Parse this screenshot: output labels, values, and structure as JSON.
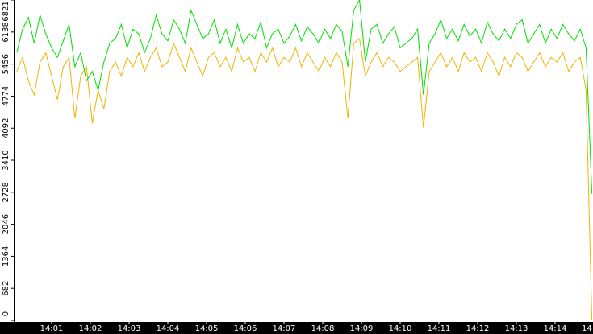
{
  "chart_data": {
    "type": "line",
    "x": [
      0.1,
      0.25,
      0.4,
      0.55,
      0.7,
      0.85,
      1,
      1.15,
      1.3,
      1.45,
      1.6,
      1.75,
      1.9,
      2.05,
      2.2,
      2.35,
      2.5,
      2.65,
      2.8,
      2.95,
      3.1,
      3.25,
      3.4,
      3.55,
      3.7,
      3.85,
      4,
      4.15,
      4.3,
      4.45,
      4.6,
      4.75,
      4.9,
      5.05,
      5.2,
      5.35,
      5.5,
      5.65,
      5.8,
      5.95,
      6.1,
      6.25,
      6.4,
      6.55,
      6.7,
      6.85,
      7,
      7.15,
      7.3,
      7.45,
      7.6,
      7.75,
      7.9,
      8.05,
      8.2,
      8.35,
      8.5,
      8.65,
      8.8,
      8.95,
      9.1,
      9.25,
      9.4,
      9.55,
      9.7,
      9.85,
      10,
      10.15,
      10.3,
      10.45,
      10.6,
      10.75,
      10.9,
      11.05,
      11.2,
      11.35,
      11.5,
      11.65,
      11.8,
      11.95,
      12.1,
      12.25,
      12.4,
      12.55,
      12.7,
      12.85,
      13,
      13.15,
      13.3,
      13.45,
      13.6,
      13.75,
      13.9,
      14.05,
      14.2,
      14.35,
      14.5,
      14.65,
      14.8,
      14.95
    ],
    "series": [
      {
        "color": "#f0b400",
        "values": [
          5300,
          5600,
          5100,
          4800,
          5500,
          5700,
          5200,
          4700,
          5400,
          5600,
          4300,
          5200,
          5400,
          4200,
          4900,
          4500,
          5300,
          5500,
          5200,
          5600,
          5400,
          5700,
          5300,
          5600,
          5800,
          5400,
          5500,
          5900,
          5600,
          5300,
          5800,
          5500,
          5200,
          5600,
          5700,
          5400,
          5600,
          5300,
          5800,
          5500,
          5600,
          5300,
          5700,
          5500,
          5800,
          5400,
          5600,
          5500,
          5800,
          5400,
          5700,
          5500,
          5300,
          5600,
          5400,
          5700,
          5500,
          4300,
          5900,
          6000,
          5200,
          5500,
          5700,
          5400,
          5600,
          5500,
          5300,
          5400,
          5500,
          5600,
          4100,
          5300,
          5500,
          5700,
          5400,
          5600,
          5300,
          5700,
          5500,
          5600,
          5300,
          5700,
          5500,
          5200,
          5600,
          5400,
          5700,
          5600,
          5300,
          5500,
          5700,
          5400,
          5600,
          5500,
          5700,
          5300,
          5500,
          5600,
          4900,
          0
        ]
      },
      {
        "color": "#00e000",
        "values": [
          5700,
          6200,
          6450,
          5900,
          6500,
          6100,
          5800,
          5600,
          5950,
          6300,
          5400,
          5700,
          5100,
          5300,
          4900,
          5500,
          5900,
          6000,
          6300,
          5800,
          6200,
          6100,
          5700,
          6000,
          6500,
          6100,
          5950,
          6400,
          6200,
          5900,
          6600,
          6300,
          6000,
          6100,
          6400,
          5900,
          6200,
          5800,
          6300,
          5900,
          6100,
          6000,
          6350,
          5800,
          6100,
          6200,
          5900,
          6050,
          6300,
          5950,
          6250,
          6100,
          5900,
          6200,
          6000,
          6300,
          6150,
          5400,
          6600,
          6821,
          5500,
          6200,
          6300,
          5900,
          6100,
          6250,
          5800,
          5900,
          6000,
          6200,
          4800,
          5900,
          6100,
          6400,
          6000,
          6200,
          5950,
          6300,
          6050,
          6200,
          5900,
          6350,
          6100,
          5950,
          6200,
          6000,
          6300,
          6400,
          5900,
          6100,
          6300,
          5900,
          6200,
          6000,
          6300,
          6100,
          5950,
          6200,
          5800,
          2700
        ]
      }
    ],
    "xlim": [
      0,
      15
    ],
    "xticks": [
      {
        "value": 1,
        "label": "14:01"
      },
      {
        "value": 2,
        "label": "14:02"
      },
      {
        "value": 3,
        "label": "14:03"
      },
      {
        "value": 4,
        "label": "14:04"
      },
      {
        "value": 5,
        "label": "14:05"
      },
      {
        "value": 6,
        "label": "14:06"
      },
      {
        "value": 7,
        "label": "14:07"
      },
      {
        "value": 8,
        "label": "14:08"
      },
      {
        "value": 9,
        "label": "14:09"
      },
      {
        "value": 10,
        "label": "14:10"
      },
      {
        "value": 11,
        "label": "14:11"
      },
      {
        "value": 12,
        "label": "14:12"
      },
      {
        "value": 13,
        "label": "14:13"
      },
      {
        "value": 14,
        "label": "14:14"
      },
      {
        "value": 15,
        "label": "14"
      }
    ],
    "ylim": [
      0,
      6821
    ],
    "yticks": [
      0,
      682,
      1364,
      2046,
      2728,
      3410,
      4092,
      4774,
      5456,
      6138,
      6821
    ]
  }
}
